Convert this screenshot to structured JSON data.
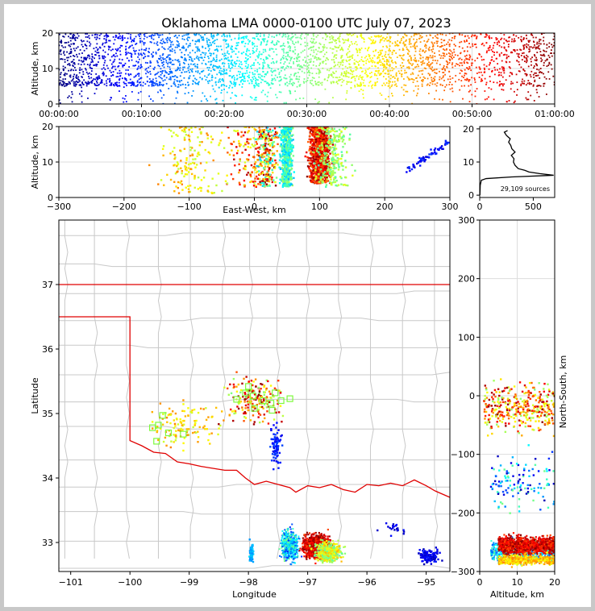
{
  "figure": {
    "title": "Oklahoma LMA 0000-0100 UTC July 07, 2023",
    "source_count_label": "29,109 sources"
  },
  "colors": {
    "state_border": "#e00000",
    "county_lines": "#c8c8c8",
    "frame": "#000000",
    "station_marker": "#7dfa3c",
    "colormap": [
      "#00007f",
      "#0000ff",
      "#007fff",
      "#00ffff",
      "#7fff7f",
      "#ffff00",
      "#ff7f00",
      "#ff0000",
      "#7f0000"
    ]
  },
  "chart_data": [
    {
      "id": "time_altitude",
      "type": "scatter",
      "xlabel": "",
      "ylabel": "Altitude, km",
      "ylim": [
        0,
        20
      ],
      "xticks": [
        "00:00:00",
        "00:10:00",
        "00:20:00",
        "00:30:00",
        "00:40:00",
        "00:50:00",
        "01:00:00"
      ],
      "yticks": [
        0,
        10,
        20
      ],
      "color_by": "time",
      "grid": true
    },
    {
      "id": "ew_altitude",
      "type": "scatter",
      "xlabel": "East-West, km",
      "ylabel": "Altitude, km",
      "xlim": [
        -300,
        300
      ],
      "ylim": [
        0,
        20
      ],
      "xticks": [
        -300,
        -200,
        -100,
        0,
        100,
        200,
        300
      ],
      "yticks": [
        0,
        10,
        20
      ],
      "grid": true
    },
    {
      "id": "altitude_histogram",
      "type": "line",
      "xlim": [
        0,
        700
      ],
      "ylim": [
        0,
        20
      ],
      "xticks": [
        0,
        500
      ],
      "yticks": [
        0,
        10,
        20
      ],
      "profile": [
        {
          "alt": 0.0,
          "count": 2
        },
        {
          "alt": 3.0,
          "count": 5
        },
        {
          "alt": 4.5,
          "count": 15
        },
        {
          "alt": 5.0,
          "count": 60
        },
        {
          "alt": 5.5,
          "count": 300
        },
        {
          "alt": 6.0,
          "count": 690
        },
        {
          "alt": 6.5,
          "count": 560
        },
        {
          "alt": 7.0,
          "count": 460
        },
        {
          "alt": 7.5,
          "count": 420
        },
        {
          "alt": 8.0,
          "count": 360
        },
        {
          "alt": 9.0,
          "count": 330
        },
        {
          "alt": 10.0,
          "count": 315
        },
        {
          "alt": 11.0,
          "count": 320
        },
        {
          "alt": 12.0,
          "count": 295
        },
        {
          "alt": 13.0,
          "count": 330
        },
        {
          "alt": 14.0,
          "count": 300
        },
        {
          "alt": 15.0,
          "count": 290
        },
        {
          "alt": 16.0,
          "count": 270
        },
        {
          "alt": 17.0,
          "count": 285
        },
        {
          "alt": 18.0,
          "count": 250
        },
        {
          "alt": 19.0,
          "count": 230
        },
        {
          "alt": 19.5,
          "count": 260
        }
      ]
    },
    {
      "id": "plan_view",
      "type": "scatter",
      "xlabel": "Longitude",
      "ylabel": "Latitude",
      "xlim": [
        -101.2,
        -94.6
      ],
      "ylim": [
        32.55,
        38.0
      ],
      "xticks": [
        -101,
        -100,
        -99,
        -98,
        -97,
        -96,
        -95
      ],
      "yticks": [
        33,
        34,
        35,
        36,
        37
      ],
      "stations": [
        {
          "lon": -99.45,
          "lat": 34.97
        },
        {
          "lon": -99.52,
          "lat": 34.82
        },
        {
          "lon": -99.35,
          "lat": 34.7
        },
        {
          "lon": -99.1,
          "lat": 34.68
        },
        {
          "lon": -99.55,
          "lat": 34.57
        },
        {
          "lon": -99.62,
          "lat": 34.78
        },
        {
          "lon": -98.05,
          "lat": 35.32
        },
        {
          "lon": -98.2,
          "lat": 35.22
        },
        {
          "lon": -97.92,
          "lat": 35.27
        },
        {
          "lon": -97.75,
          "lat": 35.2
        },
        {
          "lon": -97.62,
          "lat": 35.16
        },
        {
          "lon": -97.45,
          "lat": 35.2
        },
        {
          "lon": -97.3,
          "lat": 35.23
        },
        {
          "lon": -97.9,
          "lat": 35.08
        },
        {
          "lon": -97.6,
          "lat": 35.05
        },
        {
          "lon": -98.0,
          "lat": 35.42
        },
        {
          "lon": -97.55,
          "lat": 35.32
        }
      ]
    },
    {
      "id": "altitude_ns",
      "type": "scatter",
      "xlabel": "Altitude, km",
      "ylabel": "North-South, km",
      "xlim": [
        0,
        20
      ],
      "ylim": [
        -300,
        300
      ],
      "xticks": [
        0,
        10,
        20
      ],
      "yticks": [
        -300,
        -200,
        -100,
        0,
        100,
        200,
        300
      ],
      "grid": true
    }
  ]
}
